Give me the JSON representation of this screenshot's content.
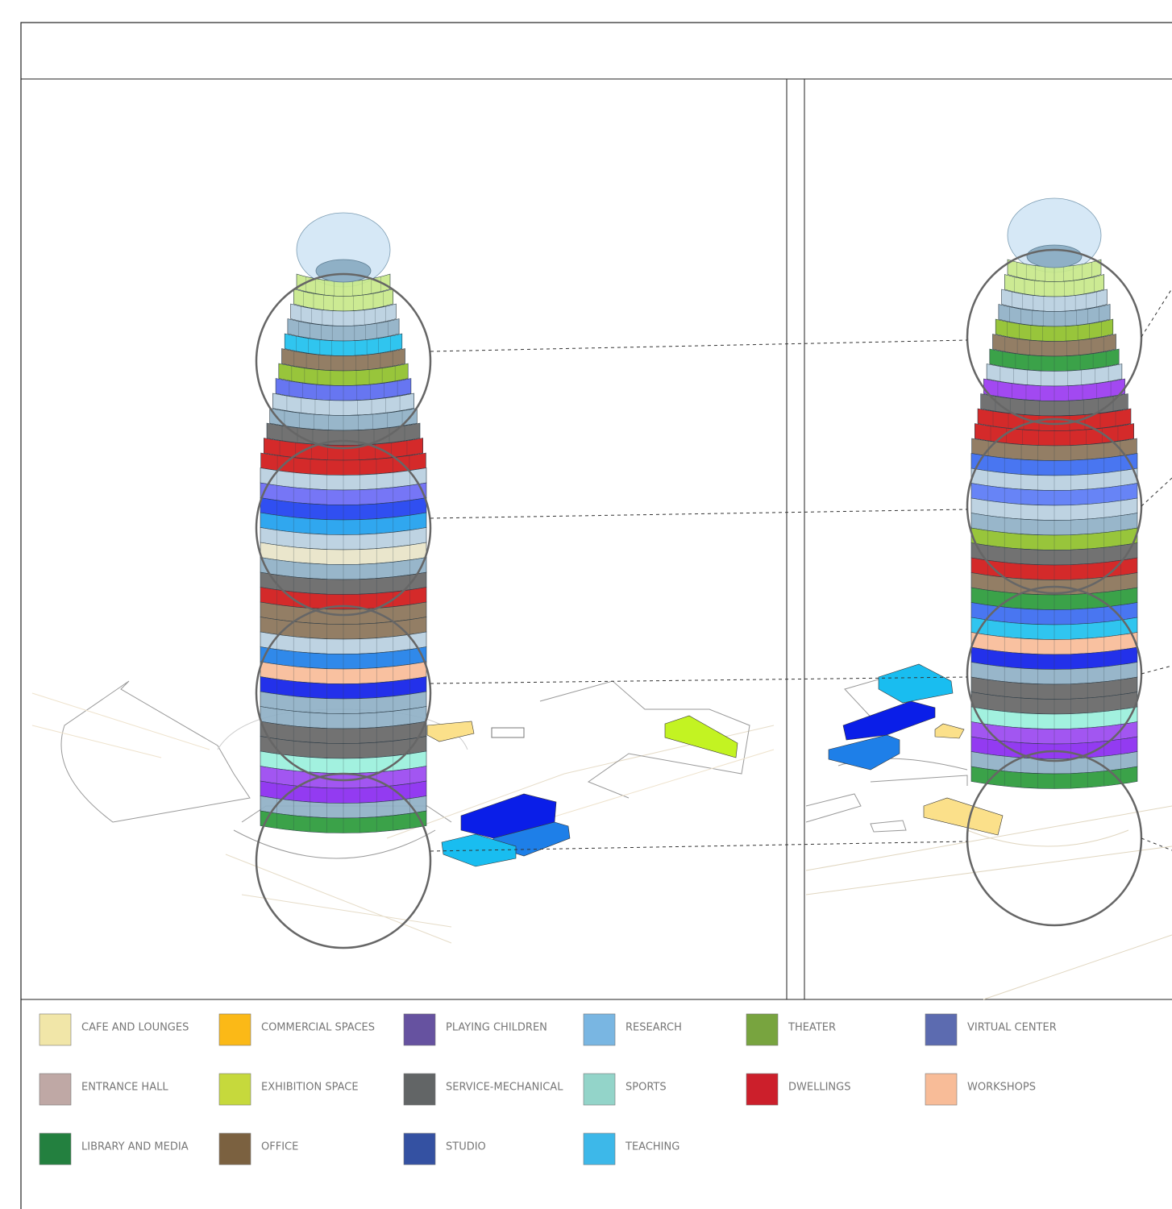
{
  "legend": {
    "items": [
      {
        "label": "CAFE AND LOUNGES",
        "color": "#f1e6a8"
      },
      {
        "label": "ENTRANCE HALL",
        "color": "#bfa8a5"
      },
      {
        "label": "LIBRARY AND MEDIA",
        "color": "#23803f"
      },
      {
        "label": "COMMERCIAL SPACES",
        "color": "#fbb917"
      },
      {
        "label": "EXHIBITION SPACE",
        "color": "#c6d93c"
      },
      {
        "label": "OFFICE",
        "color": "#7b6140"
      },
      {
        "label": "PLAYING CHILDREN",
        "color": "#6652a0"
      },
      {
        "label": "SERVICE-MECHANICAL",
        "color": "#626566"
      },
      {
        "label": "STUDIO",
        "color": "#3451a2"
      },
      {
        "label": "RESEARCH",
        "color": "#79b6e2"
      },
      {
        "label": "SPORTS",
        "color": "#93d4c9"
      },
      {
        "label": "TEACHING",
        "color": "#3db8e9"
      },
      {
        "label": "THEATER",
        "color": "#78a43f"
      },
      {
        "label": "DWELLINGS",
        "color": "#cc1f2b"
      },
      {
        "label": "VIRTUAL CENTER",
        "color": "#5c6bb0"
      },
      {
        "label": "WORKSHOPS",
        "color": "#f8bc98"
      }
    ]
  }
}
